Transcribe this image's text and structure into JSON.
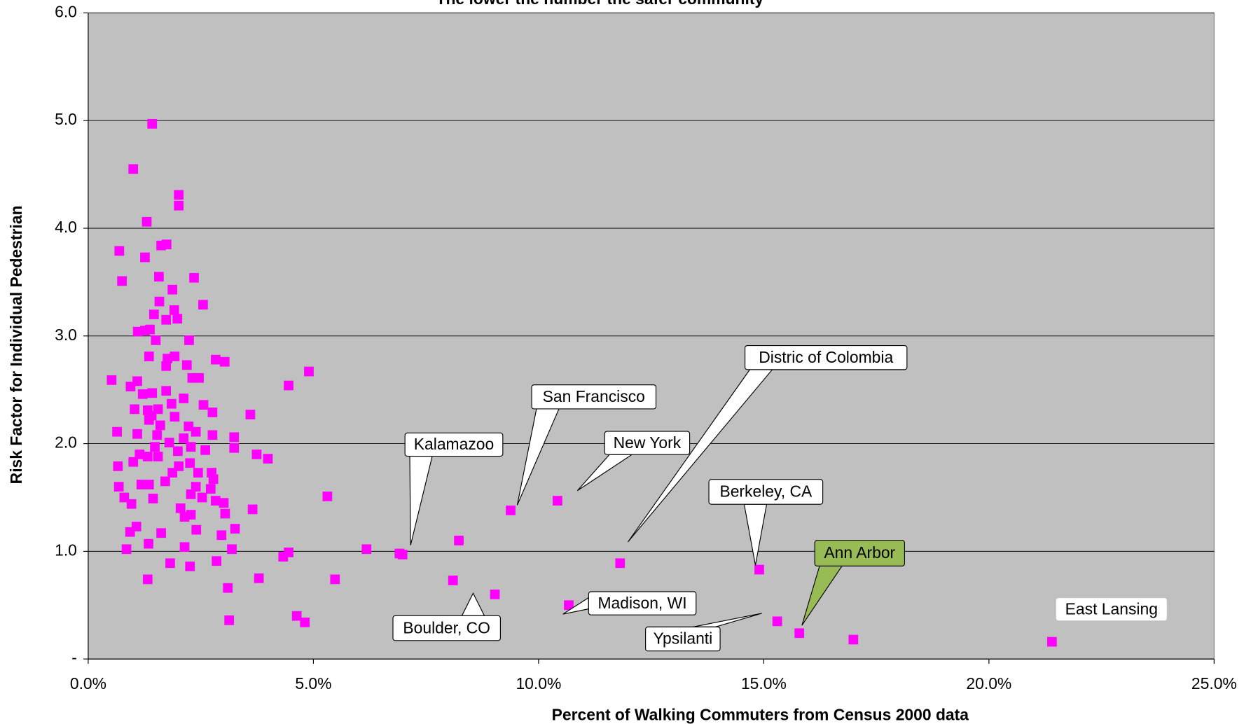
{
  "chart_data": {
    "type": "scatter",
    "title": "The lower the number the safer community",
    "x_label": "Percent of Walking Commuters from Census 2000 data",
    "y_label": "Risk Factor for Individual Pedestrian",
    "color": "#ff00ff",
    "plot_background": "#c0c0c0",
    "grid": true,
    "xlim": [
      0,
      25
    ],
    "ylim": [
      0,
      6
    ],
    "xticks": [
      {
        "value": 0,
        "label": "0.0%"
      },
      {
        "value": 5,
        "label": "5.0%"
      },
      {
        "value": 10,
        "label": "10.0%"
      },
      {
        "value": 15,
        "label": "15.0%"
      },
      {
        "value": 20,
        "label": "20.0%"
      },
      {
        "value": 25,
        "label": "25.0%"
      }
    ],
    "yticks": [
      {
        "value": 0,
        "label": "-"
      },
      {
        "value": 1,
        "label": "1.0"
      },
      {
        "value": 2,
        "label": "2.0"
      },
      {
        "value": 3,
        "label": "3.0"
      },
      {
        "value": 4,
        "label": "4.0"
      },
      {
        "value": 5,
        "label": "5.0"
      },
      {
        "value": 6,
        "label": "6.0"
      }
    ],
    "x": [
      1.42,
      1.0,
      2.01,
      2.01,
      1.3,
      0.69,
      1.26,
      1.74,
      1.62,
      0.75,
      1.57,
      2.35,
      1.87,
      1.58,
      2.55,
      1.91,
      1.46,
      1.98,
      1.73,
      1.1,
      1.26,
      1.37,
      1.5,
      2.24,
      1.35,
      1.92,
      1.76,
      1.73,
      3.03,
      2.83,
      4.9,
      0.52,
      1.09,
      0.94,
      2.19,
      2.31,
      2.46,
      1.42,
      1.73,
      1.21,
      2.12,
      1.85,
      2.56,
      1.55,
      1.32,
      1.03,
      2.76,
      3.6,
      4.45,
      1.41,
      1.92,
      1.35,
      1.6,
      2.23,
      2.39,
      0.64,
      1.09,
      1.53,
      3.24,
      2.76,
      2.12,
      1.8,
      2.28,
      1.48,
      3.24,
      2.6,
      1.99,
      1.14,
      1.32,
      3.74,
      3.99,
      1.55,
      1.0,
      0.66,
      2.26,
      2.01,
      2.74,
      2.44,
      1.87,
      1.71,
      2.39,
      1.18,
      1.35,
      2.78,
      0.68,
      2.72,
      5.31,
      2.28,
      2.53,
      0.8,
      2.83,
      1.44,
      3.01,
      0.96,
      2.05,
      3.65,
      2.28,
      3.04,
      2.14,
      1.07,
      1.62,
      3.26,
      2.4,
      0.93,
      2.96,
      1.34,
      0.85,
      2.14,
      3.19,
      6.18,
      4.45,
      4.33,
      1.82,
      2.26,
      2.85,
      6.91,
      6.98,
      8.23,
      9.38,
      10.42,
      11.81,
      14.9,
      8.1,
      5.48,
      3.79,
      1.32,
      3.1,
      9.03,
      10.67,
      4.63,
      3.13,
      4.81,
      15.3,
      15.79,
      16.99,
      21.4
    ],
    "values": [
      4.97,
      4.55,
      4.31,
      4.21,
      4.06,
      3.79,
      3.73,
      3.85,
      3.84,
      3.51,
      3.55,
      3.54,
      3.43,
      3.32,
      3.29,
      3.24,
      3.2,
      3.16,
      3.15,
      3.04,
      3.05,
      3.06,
      2.96,
      2.96,
      2.81,
      2.81,
      2.79,
      2.72,
      2.76,
      2.78,
      2.67,
      2.59,
      2.58,
      2.53,
      2.73,
      2.61,
      2.61,
      2.47,
      2.49,
      2.46,
      2.42,
      2.37,
      2.36,
      2.32,
      2.31,
      2.32,
      2.29,
      2.27,
      2.54,
      2.26,
      2.25,
      2.22,
      2.17,
      2.16,
      2.11,
      2.11,
      2.09,
      2.08,
      2.06,
      2.08,
      2.05,
      2.01,
      1.97,
      1.97,
      1.96,
      1.94,
      1.93,
      1.9,
      1.88,
      1.9,
      1.86,
      1.88,
      1.83,
      1.79,
      1.82,
      1.79,
      1.73,
      1.73,
      1.73,
      1.65,
      1.6,
      1.62,
      1.62,
      1.67,
      1.6,
      1.58,
      1.51,
      1.53,
      1.5,
      1.5,
      1.47,
      1.49,
      1.45,
      1.44,
      1.4,
      1.39,
      1.34,
      1.35,
      1.32,
      1.23,
      1.17,
      1.21,
      1.2,
      1.18,
      1.15,
      1.07,
      1.02,
      1.04,
      1.02,
      1.02,
      0.99,
      0.95,
      0.89,
      0.86,
      0.91,
      0.98,
      0.97,
      1.1,
      1.38,
      1.47,
      0.89,
      0.83,
      0.73,
      0.74,
      0.75,
      0.74,
      0.66,
      0.6,
      0.5,
      0.4,
      0.36,
      0.34,
      0.35,
      0.24,
      0.18,
      0.16
    ],
    "annotations": [
      {
        "text": "Kalamazoo"
      },
      {
        "text": "San Francisco"
      },
      {
        "text": "New York"
      },
      {
        "text": "Distric of Colombia"
      },
      {
        "text": "Berkeley, CA"
      },
      {
        "text": "Ann Arbor",
        "color": "#99bb55"
      },
      {
        "text": "Madison, WI"
      },
      {
        "text": "Boulder, CO"
      },
      {
        "text": "Ypsilanti"
      },
      {
        "text": "East Lansing"
      }
    ]
  }
}
